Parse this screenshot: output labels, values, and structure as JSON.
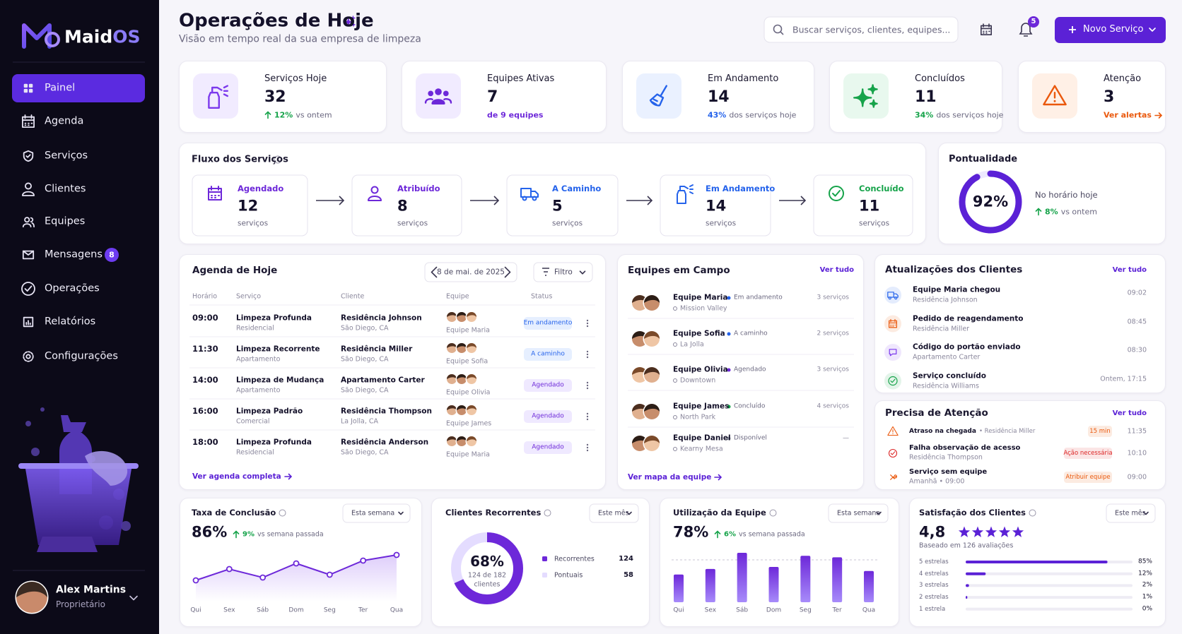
{
  "brand": {
    "name": "Maid",
    "suffix": "OS"
  },
  "nav": [
    {
      "label": "Painel"
    },
    {
      "label": "Agenda"
    },
    {
      "label": "Serviços"
    },
    {
      "label": "Clientes"
    },
    {
      "label": "Equipes"
    },
    {
      "label": "Mensagens",
      "badge": 8
    },
    {
      "label": "Operações"
    },
    {
      "label": "Relatórios"
    },
    {
      "label": "Configurações"
    }
  ],
  "user": {
    "name": "Alex Martins",
    "role": "Proprietário"
  },
  "header": {
    "title": "Operações de Hoje",
    "subtitle": "Visão em tempo real da sua empresa de limpeza",
    "search_placeholder": "Buscar serviços, clientes, equipes...",
    "notifications": 5,
    "button": "Novo Serviço"
  },
  "kpis": [
    {
      "label": "Serviços Hoje",
      "value": 32,
      "delta": "12%",
      "note": "vs ontem",
      "color": "#7c3aed",
      "delta_color": "#16a34a"
    },
    {
      "label": "Equipes Ativas",
      "value": 7,
      "note": "de 9 equipes",
      "color": "#6d28d9",
      "note_color": "#6d28d9"
    },
    {
      "label": "Em Andamento",
      "value": 14,
      "delta": "43%",
      "note": "dos serviços hoje",
      "color": "#2563eb",
      "delta_color": "#2563eb"
    },
    {
      "label": "Concluídos",
      "value": 11,
      "delta": "34%",
      "note": "dos serviços hoje",
      "color": "#16a34a",
      "delta_color": "#16a34a"
    },
    {
      "label": "Atenção",
      "value": 3,
      "note": "Ver alertas",
      "color": "#ea580c",
      "note_color": "#ea580c"
    }
  ],
  "flow": {
    "title": "Fluxo dos Serviços",
    "steps": [
      {
        "label": "Agendado",
        "value": 12,
        "unit": "serviços",
        "color": "#6d28d9"
      },
      {
        "label": "Atribuído",
        "value": 8,
        "unit": "serviços",
        "color": "#6d28d9"
      },
      {
        "label": "A Caminho",
        "value": 5,
        "unit": "serviços",
        "color": "#2563eb"
      },
      {
        "label": "Em Andamento",
        "value": 14,
        "unit": "serviços",
        "color": "#2563eb"
      },
      {
        "label": "Concluído",
        "value": 11,
        "unit": "serviços",
        "color": "#16a34a"
      }
    ]
  },
  "punctuality": {
    "title": "Pontualidade",
    "value": 92,
    "value_label": "92%",
    "note": "No horário hoje",
    "delta": "8%",
    "delta_note": "vs ontem"
  },
  "agenda": {
    "title": "Agenda de Hoje",
    "date": "8 de mai. de 2025",
    "filter": "Filtro",
    "columns": [
      "Horário",
      "Serviço",
      "Cliente",
      "Equipe",
      "Status"
    ],
    "rows": [
      {
        "time": "09:00",
        "service": "Limpeza Profunda",
        "type": "Residencial",
        "client": "Residência Johnson",
        "location": "São Diego, CA",
        "team": "Equipe Maria",
        "status": "Em andamento",
        "color": "#2563eb"
      },
      {
        "time": "11:30",
        "service": "Limpeza Recorrente",
        "type": "Apartamento",
        "client": "Residência Miller",
        "location": "São Diego, CA",
        "team": "Equipe Sofia",
        "status": "A caminho",
        "color": "#2563eb"
      },
      {
        "time": "14:00",
        "service": "Limpeza de Mudança",
        "type": "Apartamento",
        "client": "Apartamento Carter",
        "location": "São Diego, CA",
        "team": "Equipe Olivia",
        "status": "Agendado",
        "color": "#6d28d9"
      },
      {
        "time": "16:00",
        "service": "Limpeza Padrão",
        "type": "Comercial",
        "client": "Residência Thompson",
        "location": "La Jolla, CA",
        "team": "Equipe James",
        "status": "Agendado",
        "color": "#6d28d9"
      },
      {
        "time": "18:00",
        "service": "Limpeza Profunda",
        "type": "Residencial",
        "client": "Residência Anderson",
        "location": "São Diego, CA",
        "team": "Equipe Maria",
        "status": "Agendado",
        "color": "#6d28d9"
      }
    ],
    "footer": "Ver agenda completa"
  },
  "teams": {
    "title": "Equipes em Campo",
    "link": "Ver tudo",
    "items": [
      {
        "name": "Equipe Maria",
        "location": "Mission Valley",
        "status": "Em andamento",
        "services": "3 serviços",
        "color": "#2563eb"
      },
      {
        "name": "Equipe Sofia",
        "location": "La Jolla",
        "status": "A caminho",
        "services": "2 serviços",
        "color": "#2563eb"
      },
      {
        "name": "Equipe Olivia",
        "location": "Downtown",
        "status": "Agendado",
        "services": "3 serviços",
        "color": "#6d28d9"
      },
      {
        "name": "Equipe James",
        "location": "North Park",
        "status": "Concluído",
        "services": "4 serviços",
        "color": "#16a34a"
      },
      {
        "name": "Equipe Daniel",
        "location": "Kearny Mesa",
        "status": "Disponível",
        "services": "—",
        "color": "#9ca3af"
      }
    ],
    "footer": "Ver mapa da equipe"
  },
  "updates": {
    "title": "Atualizações dos Clientes",
    "link": "Ver tudo",
    "items": [
      {
        "title": "Equipe Maria chegou",
        "subtitle": "Residência Johnson",
        "time": "09:02",
        "color": "#2563eb"
      },
      {
        "title": "Pedido de reagendamento",
        "subtitle": "Residência Miller",
        "time": "08:45",
        "color": "#ea580c"
      },
      {
        "title": "Código do portão enviado",
        "subtitle": "Apartamento Carter",
        "time": "08:30",
        "color": "#7c3aed"
      },
      {
        "title": "Serviço concluído",
        "subtitle": "Residência Williams",
        "time": "Ontem, 17:15",
        "color": "#16a34a"
      }
    ]
  },
  "attention": {
    "title": "Precisa de Atenção",
    "link": "Ver tudo",
    "items": [
      {
        "title": "Atraso na chegada",
        "subtitle": "• Residência Miller",
        "tag": "15 min",
        "time": "11:35",
        "color": "#ea580c"
      },
      {
        "title": "Falha observação de acesso",
        "subtitle": "Residência Thompson",
        "tag": "Ação necessária",
        "time": "10:10",
        "color": "#dc2626"
      },
      {
        "title": "Serviço sem equipe",
        "subtitle": "Amanhã • 09:00",
        "tag": "Atribuir equipe",
        "time": "09:00",
        "color": "#ea580c"
      }
    ]
  },
  "completion": {
    "title": "Taxa de Conclusão",
    "period": "Esta semana",
    "value_label": "86%",
    "delta": "9%",
    "delta_note": "vs semana passada",
    "categories": [
      "Qui",
      "Sex",
      "Sáb",
      "Dom",
      "Seg",
      "Ter",
      "Qua"
    ],
    "values": [
      80,
      84,
      81,
      86,
      82,
      87,
      89
    ]
  },
  "recurring": {
    "title": "Clientes Recorrentes",
    "period": "Este mês",
    "center_label": "68%",
    "center_sub": "124 de 182",
    "center_unit": "clientes",
    "series": [
      {
        "name": "Recorrentes",
        "value": 124,
        "color": "#6d28d9"
      },
      {
        "name": "Pontuais",
        "value": 58,
        "color": "#e4dcff"
      }
    ]
  },
  "utilization": {
    "title": "Utilização da Equipe",
    "period": "Esta semana",
    "value_label": "78%",
    "delta": "6%",
    "delta_note": "vs semana passada",
    "categories": [
      "Qui",
      "Sex",
      "Sáb",
      "Dom",
      "Seg",
      "Ter",
      "Qua"
    ],
    "values": [
      55,
      66,
      98,
      70,
      92,
      89,
      62
    ]
  },
  "satisfaction": {
    "title": "Satisfação dos Clientes",
    "period": "Este mês",
    "rating": 4.8,
    "rating_label": "4,8",
    "based_on": "Baseado em 126 avaliações",
    "rows": [
      {
        "label": "5 estrelas",
        "value": 85,
        "value_label": "85%"
      },
      {
        "label": "4 estrelas",
        "value": 12,
        "value_label": "12%"
      },
      {
        "label": "3 estrelas",
        "value": 2,
        "value_label": "2%"
      },
      {
        "label": "2 estrelas",
        "value": 1,
        "value_label": "1%"
      },
      {
        "label": "1 estrela",
        "value": 0,
        "value_label": "0%"
      }
    ]
  }
}
